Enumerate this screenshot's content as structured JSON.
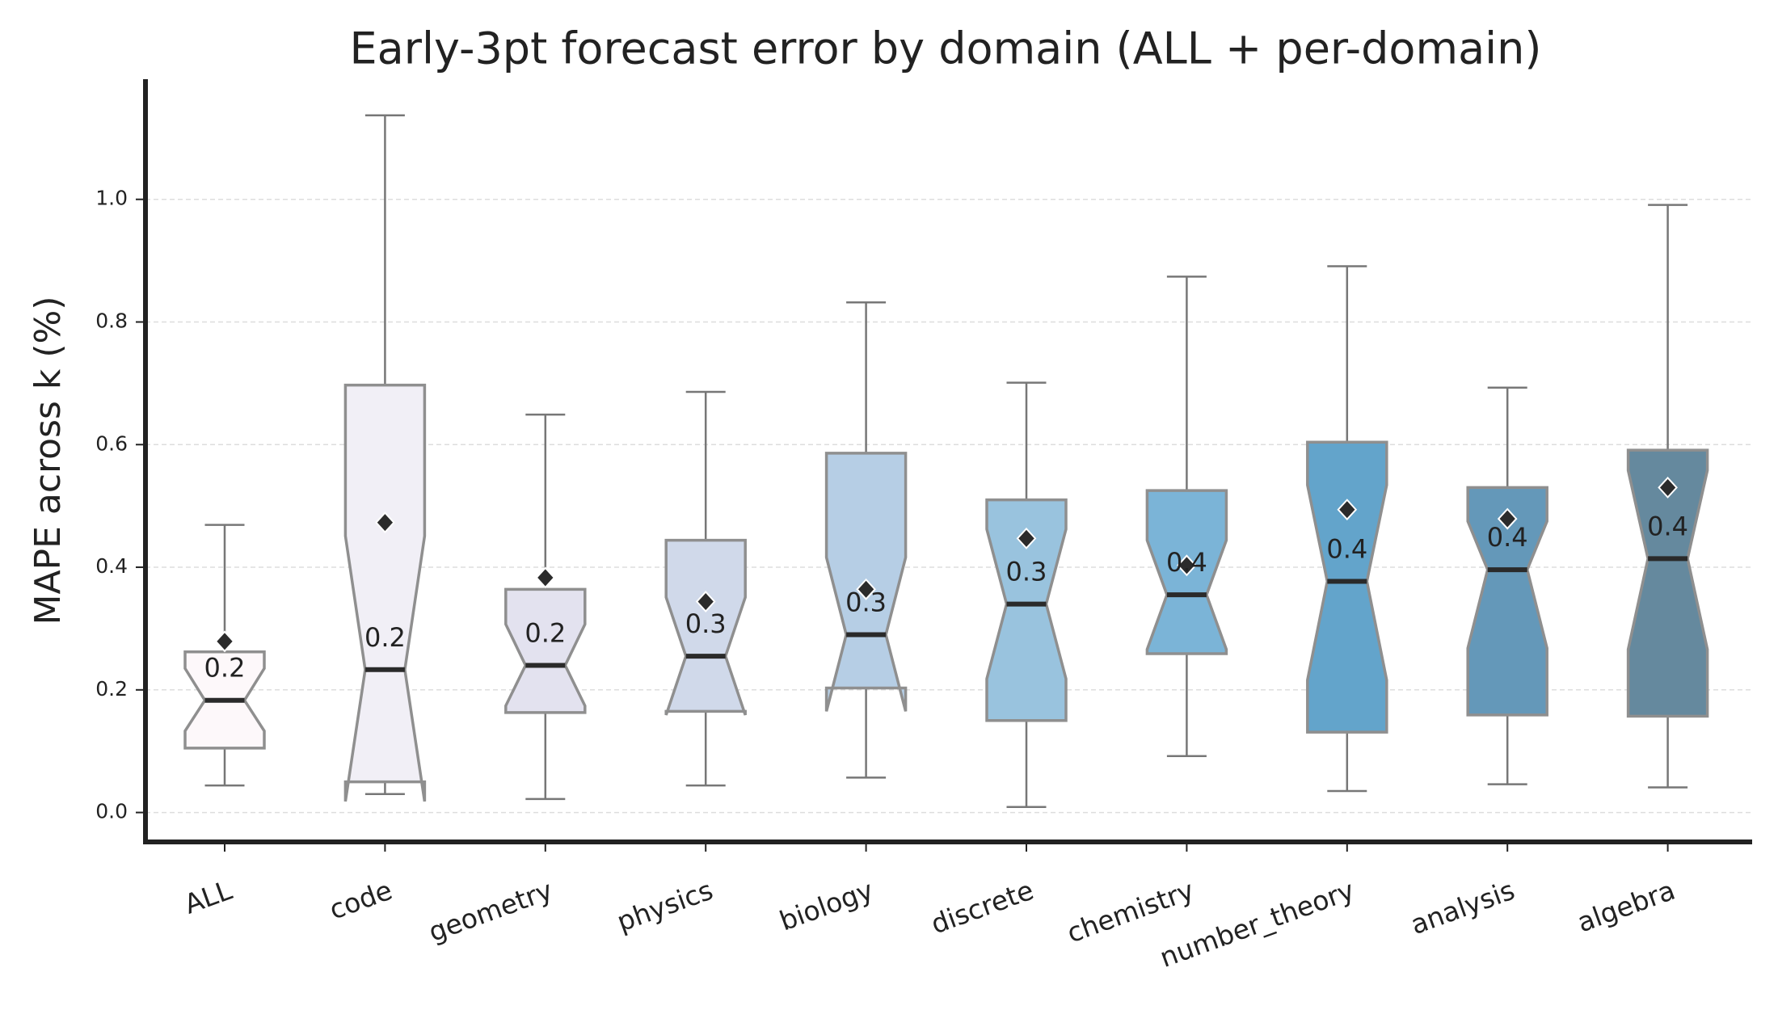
{
  "chart_data": {
    "type": "box",
    "title": "Early-3pt forecast error by domain (ALL + per-domain)",
    "y_label": "MAPE across k (%)",
    "categories": [
      "ALL",
      "code",
      "geometry",
      "physics",
      "biology",
      "discrete",
      "chemistry",
      "number_theory",
      "analysis",
      "algebra"
    ],
    "colors": [
      "#fdf8fa",
      "#f1eff6",
      "#e3e2ef",
      "#d0d9ea",
      "#b6cee5",
      "#99c3de",
      "#7bb4d7",
      "#63a4cb",
      "#6498b9",
      "#65899e"
    ],
    "whisker_low": [
      0.044,
      0.03,
      0.022,
      0.044,
      0.057,
      0.009,
      0.092,
      0.035,
      0.046,
      0.041
    ],
    "q1": [
      0.105,
      0.05,
      0.163,
      0.165,
      0.203,
      0.15,
      0.259,
      0.131,
      0.159,
      0.157
    ],
    "medians": [
      0.183,
      0.233,
      0.24,
      0.255,
      0.29,
      0.34,
      0.355,
      0.377,
      0.396,
      0.414
    ],
    "value_labels": [
      "0.2",
      "0.2",
      "0.2",
      "0.3",
      "0.3",
      "0.3",
      "0.4",
      "0.4",
      "0.4",
      "0.4"
    ],
    "q3": [
      0.262,
      0.697,
      0.364,
      0.444,
      0.586,
      0.51,
      0.525,
      0.604,
      0.53,
      0.591
    ],
    "whisker_high": [
      0.469,
      1.137,
      0.649,
      0.686,
      0.832,
      0.701,
      0.874,
      0.891,
      0.693,
      0.991
    ],
    "notch_low": [
      0.133,
      0.018,
      0.174,
      0.159,
      0.165,
      0.218,
      0.266,
      0.216,
      0.268,
      0.266
    ],
    "notch_high": [
      0.235,
      0.451,
      0.307,
      0.351,
      0.416,
      0.462,
      0.444,
      0.534,
      0.475,
      0.558
    ],
    "means": [
      0.279,
      0.473,
      0.383,
      0.344,
      0.364,
      0.447,
      0.403,
      0.494,
      0.479,
      0.53
    ],
    "ylim": [
      -0.048,
      1.196
    ],
    "yticks": [
      {
        "value": 0,
        "label": "0.0"
      },
      0.2,
      0.4,
      0.6,
      0.8,
      {
        "value": 1,
        "label": "1.0"
      }
    ],
    "grid": true
  }
}
